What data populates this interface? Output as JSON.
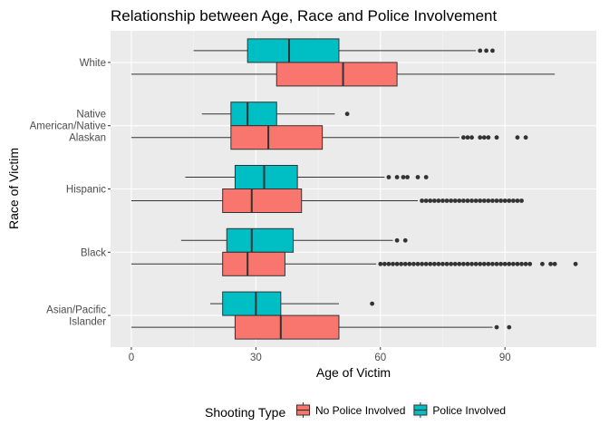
{
  "chart_data": {
    "type": "boxplot",
    "orientation": "horizontal",
    "title": "Relationship between Age, Race and Police Involvement",
    "xlabel": "Age of Victim",
    "ylabel": "Race of Victim",
    "xlim": [
      -5,
      112
    ],
    "x_ticks": [
      0,
      30,
      60,
      90
    ],
    "grid": true,
    "legend": {
      "title": "Shooting Type",
      "placement": "bottom",
      "entries": [
        {
          "label": "No Police Involved",
          "color": "#F8766D"
        },
        {
          "label": "Police Involved",
          "color": "#00BFC4"
        }
      ]
    },
    "categories": [
      {
        "label_lines": [
          "White"
        ]
      },
      {
        "label_lines": [
          "Native",
          "American/Native",
          "Alaskan"
        ]
      },
      {
        "label_lines": [
          "Hispanic"
        ]
      },
      {
        "label_lines": [
          "Black"
        ]
      },
      {
        "label_lines": [
          "Asian/Pacific",
          "Islander"
        ]
      }
    ],
    "series": [
      {
        "name": "Police Involved",
        "color": "#00BFC4",
        "boxes": [
          {
            "whislo": 15,
            "q1": 28,
            "med": 38,
            "q3": 50,
            "whishi": 83,
            "fliers": [
              84,
              85.5,
              87
            ]
          },
          {
            "whislo": 17,
            "q1": 24,
            "med": 28,
            "q3": 35,
            "whishi": 49,
            "fliers": [
              52
            ]
          },
          {
            "whislo": 13,
            "q1": 25,
            "med": 32,
            "q3": 40,
            "whishi": 61,
            "fliers": [
              62,
              64,
              65.5,
              66.5,
              69,
              71
            ]
          },
          {
            "whislo": 12,
            "q1": 23,
            "med": 29,
            "q3": 39,
            "whishi": 63,
            "fliers": [
              64,
              66
            ]
          },
          {
            "whislo": 19,
            "q1": 22,
            "med": 30,
            "q3": 36,
            "whishi": 50,
            "fliers": [
              58
            ]
          }
        ]
      },
      {
        "name": "No Police Involved",
        "color": "#F8766D",
        "boxes": [
          {
            "whislo": 0,
            "q1": 35,
            "med": 51,
            "q3": 64,
            "whishi": 102,
            "fliers": []
          },
          {
            "whislo": 0,
            "q1": 24,
            "med": 33,
            "q3": 46,
            "whishi": 79,
            "fliers": [
              80,
              81,
              82,
              84,
              85,
              86,
              88,
              93,
              95
            ]
          },
          {
            "whislo": 0,
            "q1": 22,
            "med": 29,
            "q3": 41,
            "whishi": 69,
            "fliers": [
              70,
              71,
              72,
              73,
              74,
              75,
              76,
              77,
              78,
              79,
              80,
              81,
              82,
              83,
              84,
              85,
              86,
              87,
              88,
              89,
              90,
              91,
              92,
              93,
              94
            ]
          },
          {
            "whislo": 0,
            "q1": 22,
            "med": 28,
            "q3": 37,
            "whishi": 59,
            "fliers": [
              60,
              61,
              62,
              63,
              64,
              65,
              66,
              67,
              68,
              69,
              70,
              71,
              72,
              73,
              74,
              75,
              76,
              77,
              78,
              79,
              80,
              81,
              82,
              83,
              84,
              85,
              86,
              87,
              88,
              89,
              90,
              91,
              92,
              93,
              94,
              95,
              96,
              99,
              101,
              102,
              107
            ]
          },
          {
            "whislo": 0,
            "q1": 25,
            "med": 36,
            "q3": 50,
            "whishi": 87,
            "fliers": [
              88,
              91
            ]
          }
        ]
      }
    ]
  }
}
